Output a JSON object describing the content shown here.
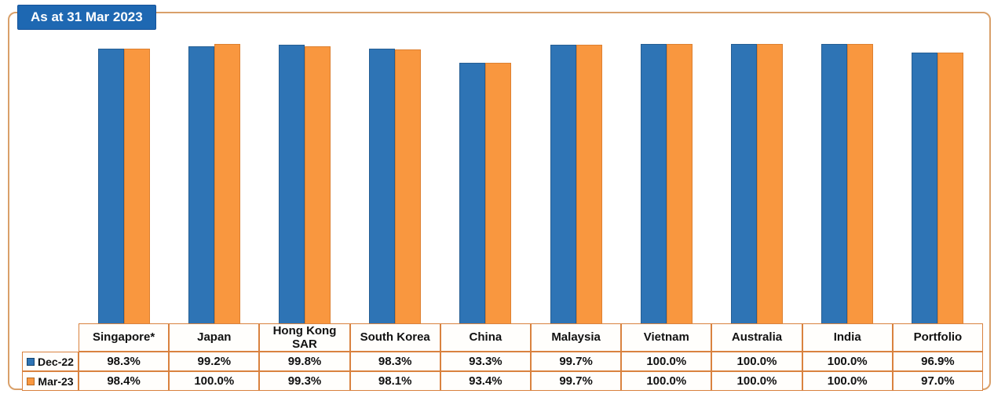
{
  "title_box": {
    "label": "As at 31 Mar 2023"
  },
  "colors": {
    "bar_blue": "#2E74B5",
    "bar_orange": "#F9973F",
    "table_border": "#D9823F",
    "panel_border": "#D9A06A",
    "title_background": "#1E68B2",
    "title_text": "#FFFFFF"
  },
  "chart_data": {
    "type": "bar",
    "title": "As at 31 Mar 2023",
    "xlabel": "",
    "ylabel": "",
    "ylim": [
      0,
      100
    ],
    "grid": false,
    "legend_position": "table-left",
    "categories": [
      "Singapore*",
      "Japan",
      "Hong Kong SAR",
      "South Korea",
      "China",
      "Malaysia",
      "Vietnam",
      "Australia",
      "India",
      "Portfolio"
    ],
    "series": [
      {
        "name": "Dec-22",
        "color": "#2E74B5",
        "values": [
          98.3,
          99.2,
          99.8,
          98.3,
          93.3,
          99.7,
          100.0,
          100.0,
          100.0,
          96.9
        ],
        "labels": [
          "98.3%",
          "99.2%",
          "99.8%",
          "98.3%",
          "93.3%",
          "99.7%",
          "100.0%",
          "100.0%",
          "100.0%",
          "96.9%"
        ]
      },
      {
        "name": "Mar-23",
        "color": "#F9973F",
        "values": [
          98.4,
          100.0,
          99.3,
          98.1,
          93.4,
          99.7,
          100.0,
          100.0,
          100.0,
          97.0
        ],
        "labels": [
          "98.4%",
          "100.0%",
          "99.3%",
          "98.1%",
          "93.4%",
          "99.7%",
          "100.0%",
          "100.0%",
          "100.0%",
          "97.0%"
        ]
      }
    ]
  }
}
